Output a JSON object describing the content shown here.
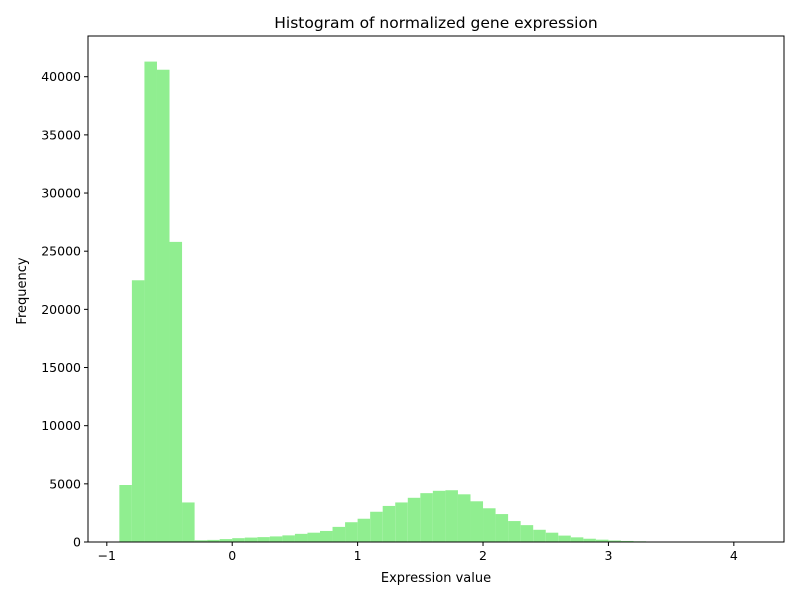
{
  "chart_data": {
    "type": "bar",
    "title": "Histogram of normalized gene expression",
    "xlabel": "Expression value",
    "ylabel": "Frequency",
    "xlim": [
      -1.15,
      4.4
    ],
    "ylim": [
      0,
      43500
    ],
    "x_ticks": [
      -1,
      0,
      1,
      2,
      3,
      4
    ],
    "x_tick_labels": [
      "−1",
      "0",
      "1",
      "2",
      "3",
      "4"
    ],
    "y_ticks": [
      0,
      5000,
      10000,
      15000,
      20000,
      25000,
      30000,
      35000,
      40000
    ],
    "y_tick_labels": [
      "0",
      "5000",
      "10000",
      "15000",
      "20000",
      "25000",
      "30000",
      "35000",
      "40000"
    ],
    "bar_color": "#90ee90",
    "bin_width": 0.1,
    "grid": false,
    "bins_start": [
      -0.9,
      -0.8,
      -0.7,
      -0.6,
      -0.5,
      -0.4,
      -0.3,
      -0.2,
      -0.1,
      0.0,
      0.1,
      0.2,
      0.3,
      0.4,
      0.5,
      0.6,
      0.7,
      0.8,
      0.9,
      1.0,
      1.1,
      1.2,
      1.3,
      1.4,
      1.5,
      1.6,
      1.7,
      1.8,
      1.9,
      2.0,
      2.1,
      2.2,
      2.3,
      2.4,
      2.5,
      2.6,
      2.7,
      2.8,
      2.9,
      3.0,
      3.1,
      3.2,
      3.3,
      3.4,
      3.5,
      3.6,
      3.7,
      3.8,
      3.9,
      4.0,
      4.1
    ],
    "values": [
      4900,
      22500,
      41300,
      40600,
      25800,
      3400,
      150,
      180,
      250,
      330,
      380,
      420,
      480,
      570,
      700,
      800,
      950,
      1300,
      1700,
      2000,
      2600,
      3100,
      3400,
      3800,
      4200,
      4400,
      4450,
      4100,
      3500,
      2900,
      2400,
      1800,
      1450,
      1050,
      800,
      550,
      400,
      280,
      200,
      130,
      90,
      60,
      35,
      20,
      12,
      8,
      5,
      3,
      2,
      1,
      1
    ]
  }
}
